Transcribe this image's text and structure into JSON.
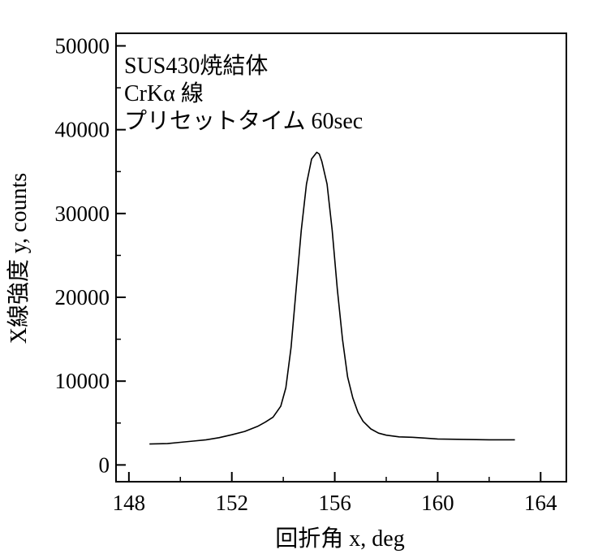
{
  "chart_data": {
    "type": "line",
    "xlabel": "回折角 x, deg",
    "ylabel": "X線強度 y, counts",
    "xlim": [
      147.5,
      165.0
    ],
    "ylim": [
      -2000,
      51500
    ],
    "x_ticks": [
      148,
      152,
      156,
      160,
      164
    ],
    "x_tick_labels": [
      "148",
      "152",
      "156",
      "160",
      "164"
    ],
    "y_ticks": [
      0,
      10000,
      20000,
      30000,
      40000,
      50000
    ],
    "y_tick_labels": [
      "0",
      "10000",
      "20000",
      "30000",
      "40000",
      "50000"
    ],
    "annotations": [
      "SUS430焼結体",
      "CrKα 線",
      "プリセットタイム 60sec"
    ],
    "grid": false,
    "line_color": "#000000",
    "series": [
      {
        "x": [
          148.8,
          149.5,
          150.0,
          150.5,
          151.0,
          151.5,
          152.0,
          152.5,
          153.0,
          153.3,
          153.6,
          153.9,
          154.1,
          154.3,
          154.5,
          154.7,
          154.9,
          155.1,
          155.3,
          155.4,
          155.5,
          155.7,
          155.9,
          156.1,
          156.3,
          156.5,
          156.7,
          156.9,
          157.1,
          157.4,
          157.7,
          158.0,
          158.5,
          159.0,
          159.5,
          160.0,
          161.0,
          162.0,
          163.0
        ],
        "y": [
          2500,
          2550,
          2700,
          2850,
          3000,
          3250,
          3600,
          4000,
          4600,
          5100,
          5700,
          7000,
          9200,
          14000,
          21000,
          28000,
          33500,
          36500,
          37300,
          37100,
          36200,
          33500,
          28000,
          21000,
          15000,
          10500,
          8000,
          6300,
          5200,
          4300,
          3800,
          3550,
          3350,
          3300,
          3200,
          3100,
          3050,
          3000,
          3000
        ]
      }
    ]
  }
}
